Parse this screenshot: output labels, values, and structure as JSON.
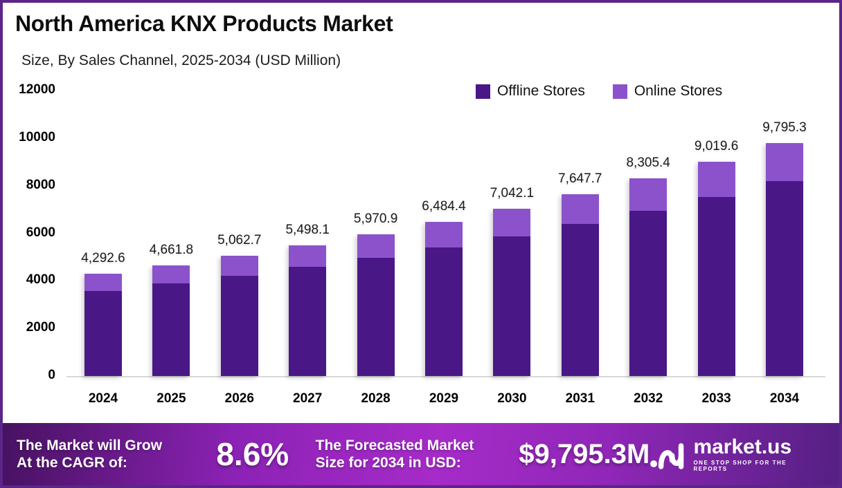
{
  "header": {
    "title": "North America KNX Products Market",
    "subtitle": "Size, By Sales Channel, 2025-2034 (USD Million)"
  },
  "chart_data": {
    "type": "bar",
    "stacked": true,
    "title": "North America KNX Products Market",
    "subtitle": "Size, By Sales Channel, 2025-2034 (USD Million)",
    "categories": [
      "2024",
      "2025",
      "2026",
      "2027",
      "2028",
      "2029",
      "2030",
      "2031",
      "2032",
      "2033",
      "2034"
    ],
    "series": [
      {
        "name": "Offline Stores",
        "color": "#4a1786",
        "values": [
          3575.0,
          3895.0,
          4220.0,
          4593.0,
          4975.0,
          5410.0,
          5880.0,
          6390.0,
          6940.0,
          7530.0,
          8180.0
        ]
      },
      {
        "name": "Online Stores",
        "color": "#8c52cc",
        "values": [
          717.6,
          766.8,
          842.7,
          905.1,
          995.9,
          1074.4,
          1162.1,
          1257.7,
          1365.4,
          1489.6,
          1615.3
        ]
      }
    ],
    "totals": [
      4292.6,
      4661.8,
      5062.7,
      5498.1,
      5970.9,
      6484.4,
      7042.1,
      7647.7,
      8305.4,
      9019.6,
      9795.3
    ],
    "total_labels": [
      "4,292.6",
      "4,661.8",
      "5,062.7",
      "5,498.1",
      "5,970.9",
      "6,484.4",
      "7,042.1",
      "7,647.7",
      "8,305.4",
      "9,019.6",
      "9,795.3"
    ],
    "xlabel": "",
    "ylabel": "",
    "ylim": [
      0,
      12000
    ],
    "ytick_step": 2000,
    "grid": false,
    "legend_position": "top-right"
  },
  "legend": {
    "items": [
      {
        "label": "Offline Stores",
        "color": "#4a1786"
      },
      {
        "label": "Online Stores",
        "color": "#8c52cc"
      }
    ]
  },
  "footer": {
    "cagr_label_line1": "The Market will Grow",
    "cagr_label_line2": "At the CAGR of:",
    "cagr_value": "8.6%",
    "forecast_label_line1": "The Forecasted Market",
    "forecast_label_line2": "Size for 2034 in USD:",
    "forecast_value": "$9,795.3M",
    "brand": {
      "name": "market.us",
      "tagline": "ONE STOP SHOP FOR THE REPORTS"
    }
  },
  "colors": {
    "frame_border": "#5b2589",
    "offline_bar": "#4a1786",
    "online_bar": "#8c52cc",
    "banner_gradient_left": "#471261",
    "banner_gradient_center": "#a62bc8",
    "banner_gradient_right": "#552083"
  }
}
